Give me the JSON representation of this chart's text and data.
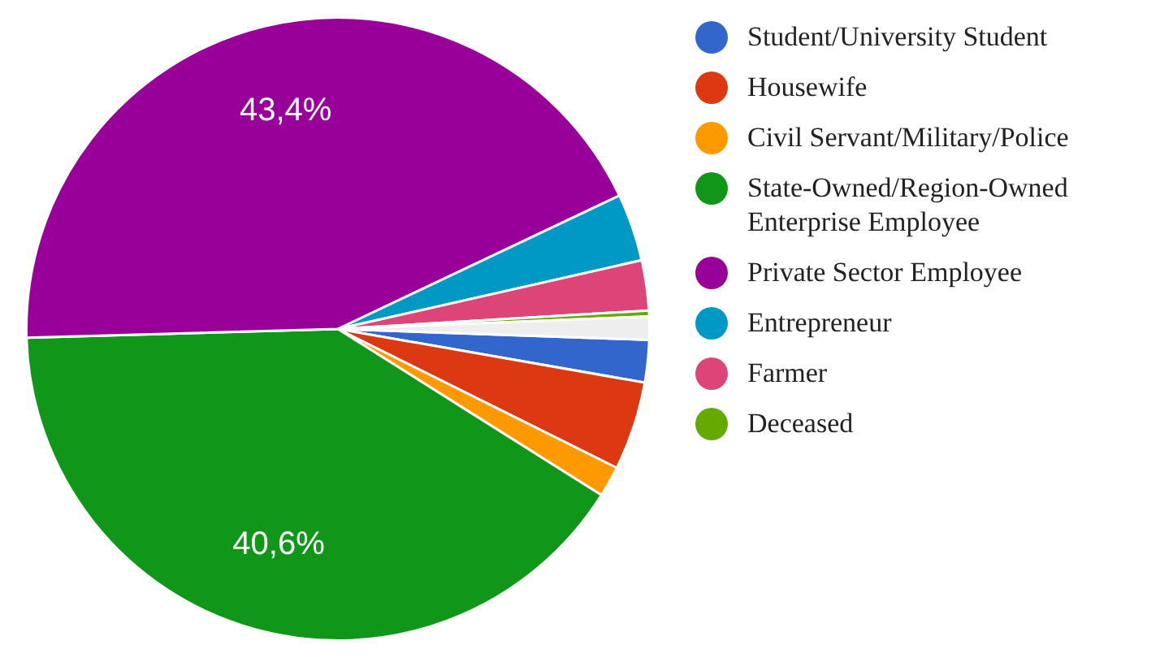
{
  "chart_data": {
    "type": "pie",
    "categories": [
      "Student/University Student",
      "Housewife",
      "Civil Servant/Military/Police",
      "State-Owned/Region-Owned Enterprise Employee",
      "Private Sector Employee",
      "Entrepreneur",
      "Farmer",
      "Deceased",
      null
    ],
    "values": [
      2.2,
      4.6,
      1.6,
      40.6,
      43.4,
      3.5,
      2.6,
      0.3,
      1.2
    ],
    "colors": [
      "#3366cc",
      "#dc3912",
      "#ff9900",
      "#109618",
      "#990099",
      "#0099c6",
      "#dd4477",
      "#66aa00",
      "#eeeeee"
    ],
    "value_labels": [
      null,
      null,
      null,
      "40,6%",
      "43,4%",
      null,
      null,
      null,
      null
    ],
    "legend": "right"
  }
}
